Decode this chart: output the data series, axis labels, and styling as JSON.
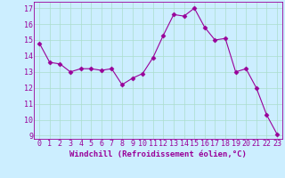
{
  "x": [
    0,
    1,
    2,
    3,
    4,
    5,
    6,
    7,
    8,
    9,
    10,
    11,
    12,
    13,
    14,
    15,
    16,
    17,
    18,
    19,
    20,
    21,
    22,
    23
  ],
  "y": [
    14.8,
    13.6,
    13.5,
    13.0,
    13.2,
    13.2,
    13.1,
    13.2,
    12.2,
    12.6,
    12.9,
    13.9,
    15.3,
    16.6,
    16.5,
    17.0,
    15.8,
    15.0,
    15.1,
    13.0,
    13.2,
    12.0,
    10.3,
    9.1
  ],
  "line_color": "#990099",
  "marker": "D",
  "marker_size": 2.5,
  "bg_color": "#cceeff",
  "grid_color": "#aaddcc",
  "xlabel": "Windchill (Refroidissement éolien,°C)",
  "xlabel_fontsize": 6.5,
  "tick_fontsize": 6,
  "ylabel_ticks": [
    9,
    10,
    11,
    12,
    13,
    14,
    15,
    16,
    17
  ],
  "ylim": [
    8.8,
    17.4
  ],
  "xlim": [
    -0.5,
    23.5
  ]
}
